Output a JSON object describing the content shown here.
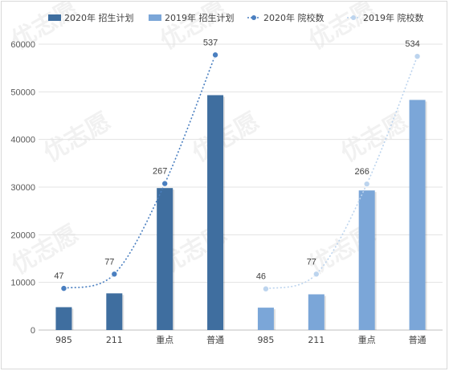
{
  "chart_data": {
    "type": "bar",
    "ylim": [
      0,
      60000
    ],
    "yticks": [
      0,
      10000,
      20000,
      30000,
      40000,
      50000,
      60000
    ],
    "groups": [
      {
        "categories": [
          "985",
          "211",
          "重点",
          "普通"
        ],
        "series": "2020年 招生计划",
        "values": [
          4800,
          7700,
          29800,
          49300
        ]
      },
      {
        "categories": [
          "985",
          "211",
          "重点",
          "普通"
        ],
        "series": "2019年 招生计划",
        "values": [
          4700,
          7500,
          29300,
          48300
        ]
      }
    ],
    "lines": [
      {
        "name": "2020年 院校数",
        "group": 0,
        "values": [
          47,
          77,
          267,
          537
        ]
      },
      {
        "name": "2019年 院校数",
        "group": 1,
        "values": [
          46,
          77,
          266,
          534
        ]
      }
    ],
    "legend": {
      "position": "top",
      "items": [
        {
          "label": "2020年 招生计划",
          "kind": "bar",
          "color": "#3f6e9f"
        },
        {
          "label": "2019年 招生计划",
          "kind": "bar",
          "color": "#7ba6d8"
        },
        {
          "label": "2020年 院校数",
          "kind": "line",
          "color": "#4a7fc0"
        },
        {
          "label": "2019年 院校数",
          "kind": "line",
          "color": "#bcd4ee"
        }
      ]
    },
    "grid": "horizontal",
    "watermark": "优志愿"
  }
}
